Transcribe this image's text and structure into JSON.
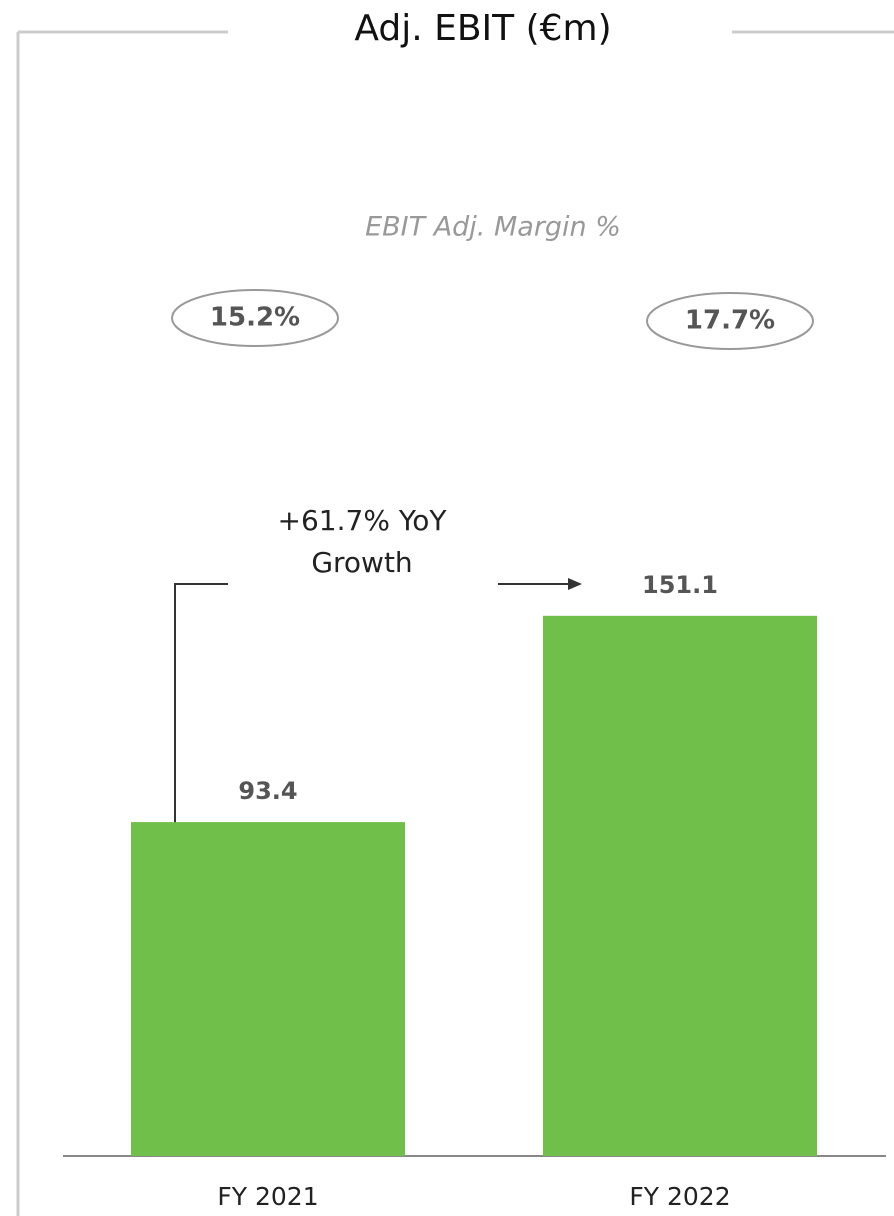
{
  "chart_data": {
    "type": "bar",
    "title": "Adj. EBIT (€m)",
    "subtitle": "EBIT Adj. Margin %",
    "categories": [
      "FY 2021",
      "FY 2022"
    ],
    "values": [
      93.4,
      151.1
    ],
    "color": "#70bf4b",
    "ylim": [
      0,
      200
    ],
    "margins": {
      "values": [
        15.2,
        17.7
      ],
      "value_labels": [
        "15.2%",
        "17.7%"
      ]
    },
    "annotation": "+61.7% YoY Growth"
  }
}
